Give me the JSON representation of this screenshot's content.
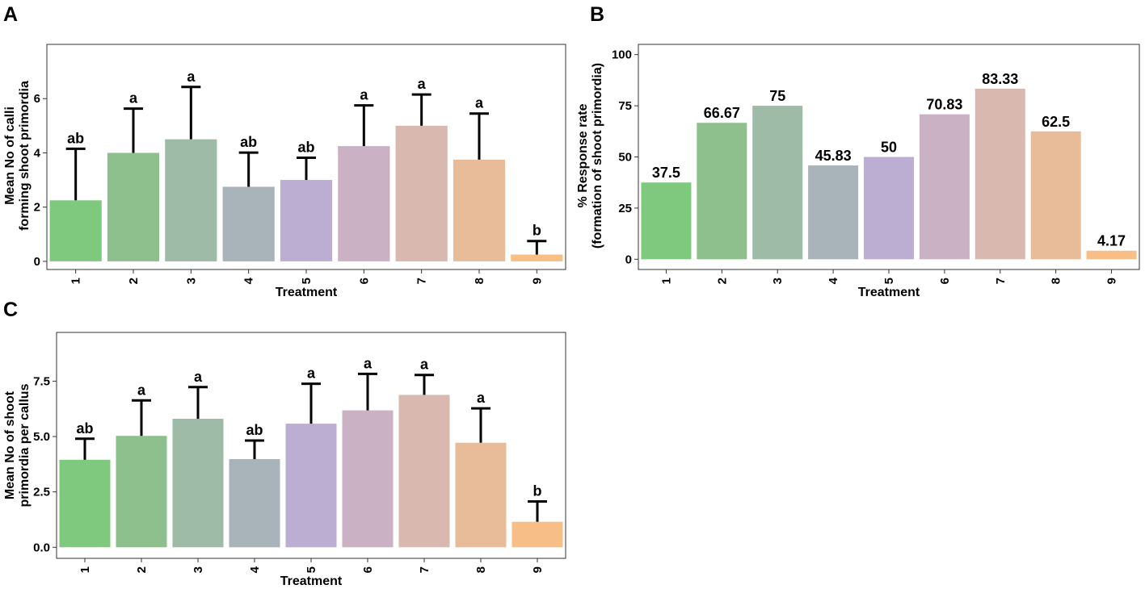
{
  "chart_data": [
    {
      "panel": "A",
      "type": "bar",
      "xlabel": "Treatment",
      "ylabel": [
        "Mean No of calli",
        "forming shoot primordia"
      ],
      "categories": [
        "1",
        "2",
        "3",
        "4",
        "5",
        "6",
        "7",
        "8",
        "9"
      ],
      "values": [
        2.25,
        4.0,
        4.5,
        2.75,
        3.0,
        4.25,
        5.0,
        3.75,
        0.25
      ],
      "errors": [
        1.9,
        1.63,
        1.93,
        1.26,
        0.82,
        1.5,
        1.15,
        1.7,
        0.5
      ],
      "labels": [
        "ab",
        "a",
        "a",
        "ab",
        "ab",
        "a",
        "a",
        "a",
        "b"
      ],
      "colors": [
        "#7fc97f",
        "#8dc08c",
        "#9dbba6",
        "#a9b3ba",
        "#bcadd2",
        "#cbb1c4",
        "#d9b8b0",
        "#e8bb99",
        "#f8be88"
      ],
      "ylim": [
        -0.3,
        8.0
      ],
      "yticks": [
        0,
        2,
        4,
        6
      ],
      "show_values": false
    },
    {
      "panel": "B",
      "type": "bar",
      "xlabel": "Treatment",
      "ylabel": [
        "% Response rate",
        "(formation of shoot primordia)"
      ],
      "categories": [
        "1",
        "2",
        "3",
        "4",
        "5",
        "6",
        "7",
        "8",
        "9"
      ],
      "values": [
        37.5,
        66.67,
        75,
        45.83,
        50,
        70.83,
        83.33,
        62.5,
        4.17
      ],
      "value_labels": [
        "37.5",
        "66.67",
        "75",
        "45.83",
        "50",
        "70.83",
        "83.33",
        "62.5",
        "4.17"
      ],
      "colors": [
        "#7fc97f",
        "#8dc08c",
        "#9dbba6",
        "#a9b3ba",
        "#bcadd2",
        "#cbb1c4",
        "#d9b8b0",
        "#e8bb99",
        "#f8be88"
      ],
      "ylim": [
        -5,
        105
      ],
      "yticks": [
        0,
        25,
        50,
        75,
        100
      ],
      "show_values": true
    },
    {
      "panel": "C",
      "type": "bar",
      "xlabel": "Treatment",
      "ylabel": [
        "Mean No of shoot",
        "primordia per callus"
      ],
      "categories": [
        "1",
        "2",
        "3",
        "4",
        "5",
        "6",
        "7",
        "8",
        "9"
      ],
      "values": [
        3.95,
        5.03,
        5.8,
        3.98,
        5.58,
        6.18,
        6.88,
        4.72,
        1.15
      ],
      "errors": [
        0.95,
        1.6,
        1.43,
        0.84,
        1.8,
        1.65,
        0.9,
        1.55,
        0.92
      ],
      "labels": [
        "ab",
        "a",
        "a",
        "ab",
        "a",
        "a",
        "a",
        "a",
        "b"
      ],
      "colors": [
        "#7fc97f",
        "#8dc08c",
        "#9dbba6",
        "#a9b3ba",
        "#bcadd2",
        "#cbb1c4",
        "#d9b8b0",
        "#e8bb99",
        "#f8be88"
      ],
      "ylim": [
        -0.5,
        9.7
      ],
      "yticks": [
        0.0,
        2.5,
        5.0,
        7.5
      ],
      "ytick_labels": [
        "0.0",
        "2.5",
        "5.0",
        "7.5"
      ],
      "show_values": false
    }
  ]
}
